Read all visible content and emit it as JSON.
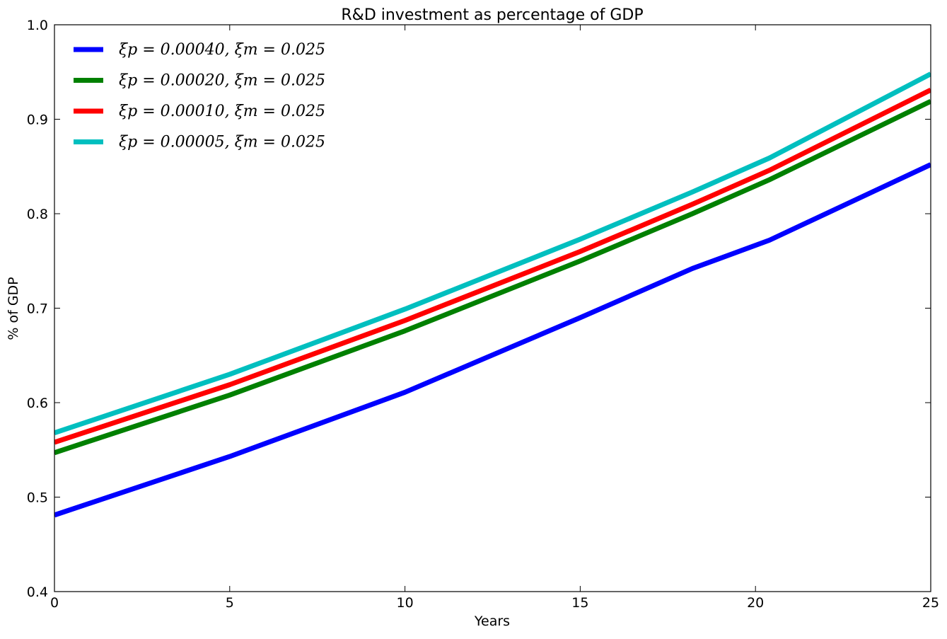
{
  "chart_data": {
    "type": "line",
    "title": "R&D investment as percentage of  GDP",
    "xlabel": "Years",
    "ylabel": "% of GDP",
    "xlim": [
      0,
      25
    ],
    "ylim": [
      0.4,
      1.0
    ],
    "x_ticks": [
      "0",
      "5",
      "10",
      "15",
      "20",
      "25"
    ],
    "y_ticks": [
      "0.4",
      "0.5",
      "0.6",
      "0.7",
      "0.8",
      "0.9",
      "1.0"
    ],
    "grid": false,
    "legend_position": "top-left",
    "x": [
      0,
      5,
      10,
      15,
      18.2,
      20.4,
      25
    ],
    "series": [
      {
        "name": "ξp = 0.00040, ξm = 0.025",
        "color": "#0000ff",
        "values": [
          0.481,
          0.543,
          0.611,
          0.69,
          0.742,
          0.772,
          0.852
        ]
      },
      {
        "name": "ξp = 0.00020, ξm = 0.025",
        "color": "#008000",
        "values": [
          0.547,
          0.608,
          0.676,
          0.75,
          0.8,
          0.836,
          0.919
        ]
      },
      {
        "name": "ξp = 0.00010, ξm = 0.025",
        "color": "#ff0000",
        "values": [
          0.558,
          0.619,
          0.687,
          0.76,
          0.81,
          0.846,
          0.931
        ]
      },
      {
        "name": "ξp = 0.00005, ξm = 0.025",
        "color": "#00bfbf",
        "values": [
          0.568,
          0.63,
          0.699,
          0.773,
          0.823,
          0.859,
          0.948
        ]
      }
    ]
  }
}
